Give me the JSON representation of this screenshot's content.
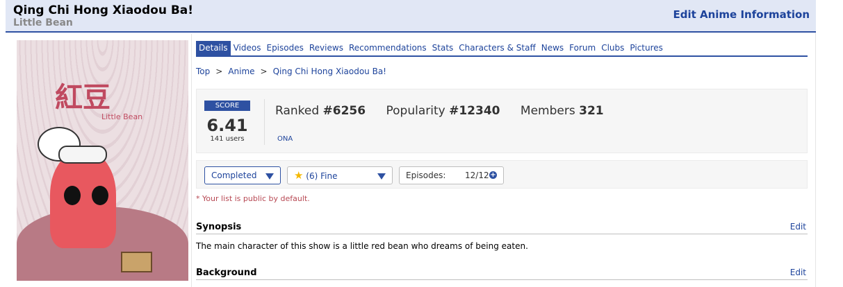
{
  "header": {
    "title": "Qing Chi Hong Xiaodou Ba!",
    "subtitle": "Little Bean",
    "edit_link": "Edit Anime Information"
  },
  "poster": {
    "logo_text": "紅豆",
    "logo_sub": "Little Bean"
  },
  "tabs": [
    {
      "label": "Details",
      "active": true
    },
    {
      "label": "Videos"
    },
    {
      "label": "Episodes"
    },
    {
      "label": "Reviews"
    },
    {
      "label": "Recommendations"
    },
    {
      "label": "Stats"
    },
    {
      "label": "Characters & Staff"
    },
    {
      "label": "News"
    },
    {
      "label": "Forum"
    },
    {
      "label": "Clubs"
    },
    {
      "label": "Pictures"
    }
  ],
  "breadcrumb": {
    "items": [
      "Top",
      "Anime",
      "Qing Chi Hong Xiaodou Ba!"
    ],
    "separator": ">"
  },
  "score": {
    "label": "SCORE",
    "value": "6.41",
    "users": "141 users"
  },
  "stats": {
    "ranked_label": "Ranked",
    "ranked": "#6256",
    "popularity_label": "Popularity",
    "popularity": "#12340",
    "members_label": "Members",
    "members": "321",
    "type": "ONA"
  },
  "list": {
    "status": "Completed",
    "rating": "(6) Fine",
    "episodes_label": "Episodes:",
    "episodes": "12/12",
    "note": "* Your list is public by default."
  },
  "synopsis": {
    "heading": "Synopsis",
    "edit": "Edit",
    "text": "The main character of this show is a little red bean who dreams of being eaten."
  },
  "background": {
    "heading": "Background",
    "edit": "Edit"
  },
  "colors": {
    "accent": "#2e51a2",
    "header_bg": "#e1e7f5",
    "link": "#1d439b",
    "note": "#b74853"
  }
}
